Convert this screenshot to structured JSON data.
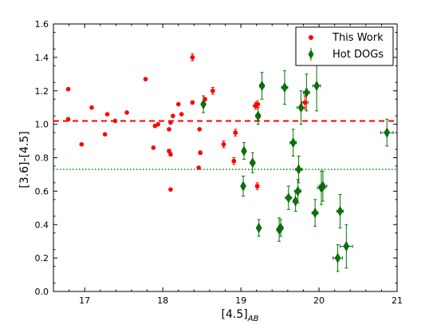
{
  "chart_data": {
    "type": "scatter",
    "xlabel": "[4.5]",
    "xlabel_sub": "AB",
    "ylabel": "[3.6]-[4.5]",
    "xlim": [
      16.6,
      21.0
    ],
    "ylim": [
      0.0,
      1.6
    ],
    "xticks": [
      "17",
      "18",
      "19",
      "20",
      "21"
    ],
    "yticks": [
      "0.0",
      "0.2",
      "0.4",
      "0.6",
      "0.8",
      "1.0",
      "1.2",
      "1.4",
      "1.6"
    ],
    "grid": false,
    "legend_position": "top-right",
    "colors": {
      "this_work": "#ff0000",
      "hot_dogs": "#007700",
      "hline_dashed": "#ff0000",
      "hline_dotted": "#008800"
    },
    "hlines": [
      {
        "y": 1.02,
        "style": "dashed",
        "color": "#ff0000"
      },
      {
        "y": 0.73,
        "style": "dotted",
        "color": "#008800"
      }
    ],
    "series": [
      {
        "name": "This Work",
        "marker": "circle",
        "points": [
          [
            16.79,
            1.21,
            0.005,
            0
          ],
          [
            16.79,
            1.03,
            0.005,
            0
          ],
          [
            16.96,
            0.88,
            0.005,
            0
          ],
          [
            17.09,
            1.1,
            0.005,
            0
          ],
          [
            17.26,
            0.94,
            0.005,
            0
          ],
          [
            17.29,
            1.06,
            0.005,
            0
          ],
          [
            17.39,
            1.02,
            0.005,
            0
          ],
          [
            17.54,
            1.07,
            0.005,
            0
          ],
          [
            17.78,
            1.27,
            0.005,
            0
          ],
          [
            17.88,
            0.86,
            0.005,
            0
          ],
          [
            17.9,
            0.99,
            0.005,
            0
          ],
          [
            17.94,
            1.0,
            0.005,
            0
          ],
          [
            18.08,
            0.97,
            0.005,
            0
          ],
          [
            18.08,
            0.84,
            0.005,
            0.01
          ],
          [
            18.1,
            0.82,
            0.005,
            0.01
          ],
          [
            18.1,
            1.01,
            0.005,
            0
          ],
          [
            18.1,
            0.61,
            0.005,
            0
          ],
          [
            18.13,
            1.05,
            0.005,
            0
          ],
          [
            18.2,
            1.12,
            0.005,
            0
          ],
          [
            18.24,
            1.06,
            0.005,
            0
          ],
          [
            18.38,
            1.4,
            0.02,
            0.02
          ],
          [
            18.38,
            1.13,
            0.005,
            0.01
          ],
          [
            18.46,
            0.74,
            0.005,
            0
          ],
          [
            18.47,
            0.97,
            0.005,
            0
          ],
          [
            18.48,
            0.83,
            0.005,
            0.01
          ],
          [
            18.54,
            1.15,
            0.005,
            0.01
          ],
          [
            18.64,
            1.2,
            0.02,
            0.02
          ],
          [
            18.78,
            0.88,
            0.02,
            0.02
          ],
          [
            18.91,
            0.78,
            0.02,
            0.02
          ],
          [
            18.93,
            0.95,
            0.02,
            0.02
          ],
          [
            19.19,
            1.11,
            0.03,
            0.02
          ],
          [
            19.21,
            0.63,
            0.02,
            0.02
          ],
          [
            19.21,
            1.12,
            0.03,
            0.02
          ],
          [
            19.82,
            1.13,
            0.04,
            0.04
          ]
        ]
      },
      {
        "name": "Hot DOGs",
        "marker": "diamond",
        "points": [
          [
            18.52,
            1.12,
            0.02,
            0.05
          ],
          [
            19.03,
            0.63,
            0.02,
            0.06
          ],
          [
            19.04,
            0.84,
            0.02,
            0.05
          ],
          [
            19.15,
            0.77,
            0.03,
            0.06
          ],
          [
            19.22,
            1.05,
            0.03,
            0.05
          ],
          [
            19.23,
            0.38,
            0.02,
            0.05
          ],
          [
            19.27,
            1.23,
            0.03,
            0.08
          ],
          [
            19.49,
            0.37,
            0.03,
            0.07
          ],
          [
            19.51,
            0.38,
            0.03,
            0.05
          ],
          [
            19.56,
            1.22,
            0.04,
            0.1
          ],
          [
            19.61,
            0.56,
            0.04,
            0.07
          ],
          [
            19.67,
            0.89,
            0.04,
            0.08
          ],
          [
            19.7,
            0.54,
            0.03,
            0.06
          ],
          [
            19.73,
            0.6,
            0.04,
            0.07
          ],
          [
            19.74,
            0.73,
            0.04,
            0.08
          ],
          [
            19.77,
            1.1,
            0.05,
            0.1
          ],
          [
            19.84,
            1.19,
            0.04,
            0.11
          ],
          [
            19.95,
            0.47,
            0.04,
            0.08
          ],
          [
            19.97,
            1.23,
            0.05,
            0.15
          ],
          [
            20.03,
            0.62,
            0.05,
            0.1
          ],
          [
            20.05,
            0.63,
            0.05,
            0.09
          ],
          [
            20.24,
            0.2,
            0.06,
            0.08
          ],
          [
            20.27,
            0.48,
            0.04,
            0.1
          ],
          [
            20.35,
            0.27,
            0.08,
            0.13
          ],
          [
            20.87,
            0.95,
            0.08,
            0.08
          ]
        ]
      }
    ]
  }
}
